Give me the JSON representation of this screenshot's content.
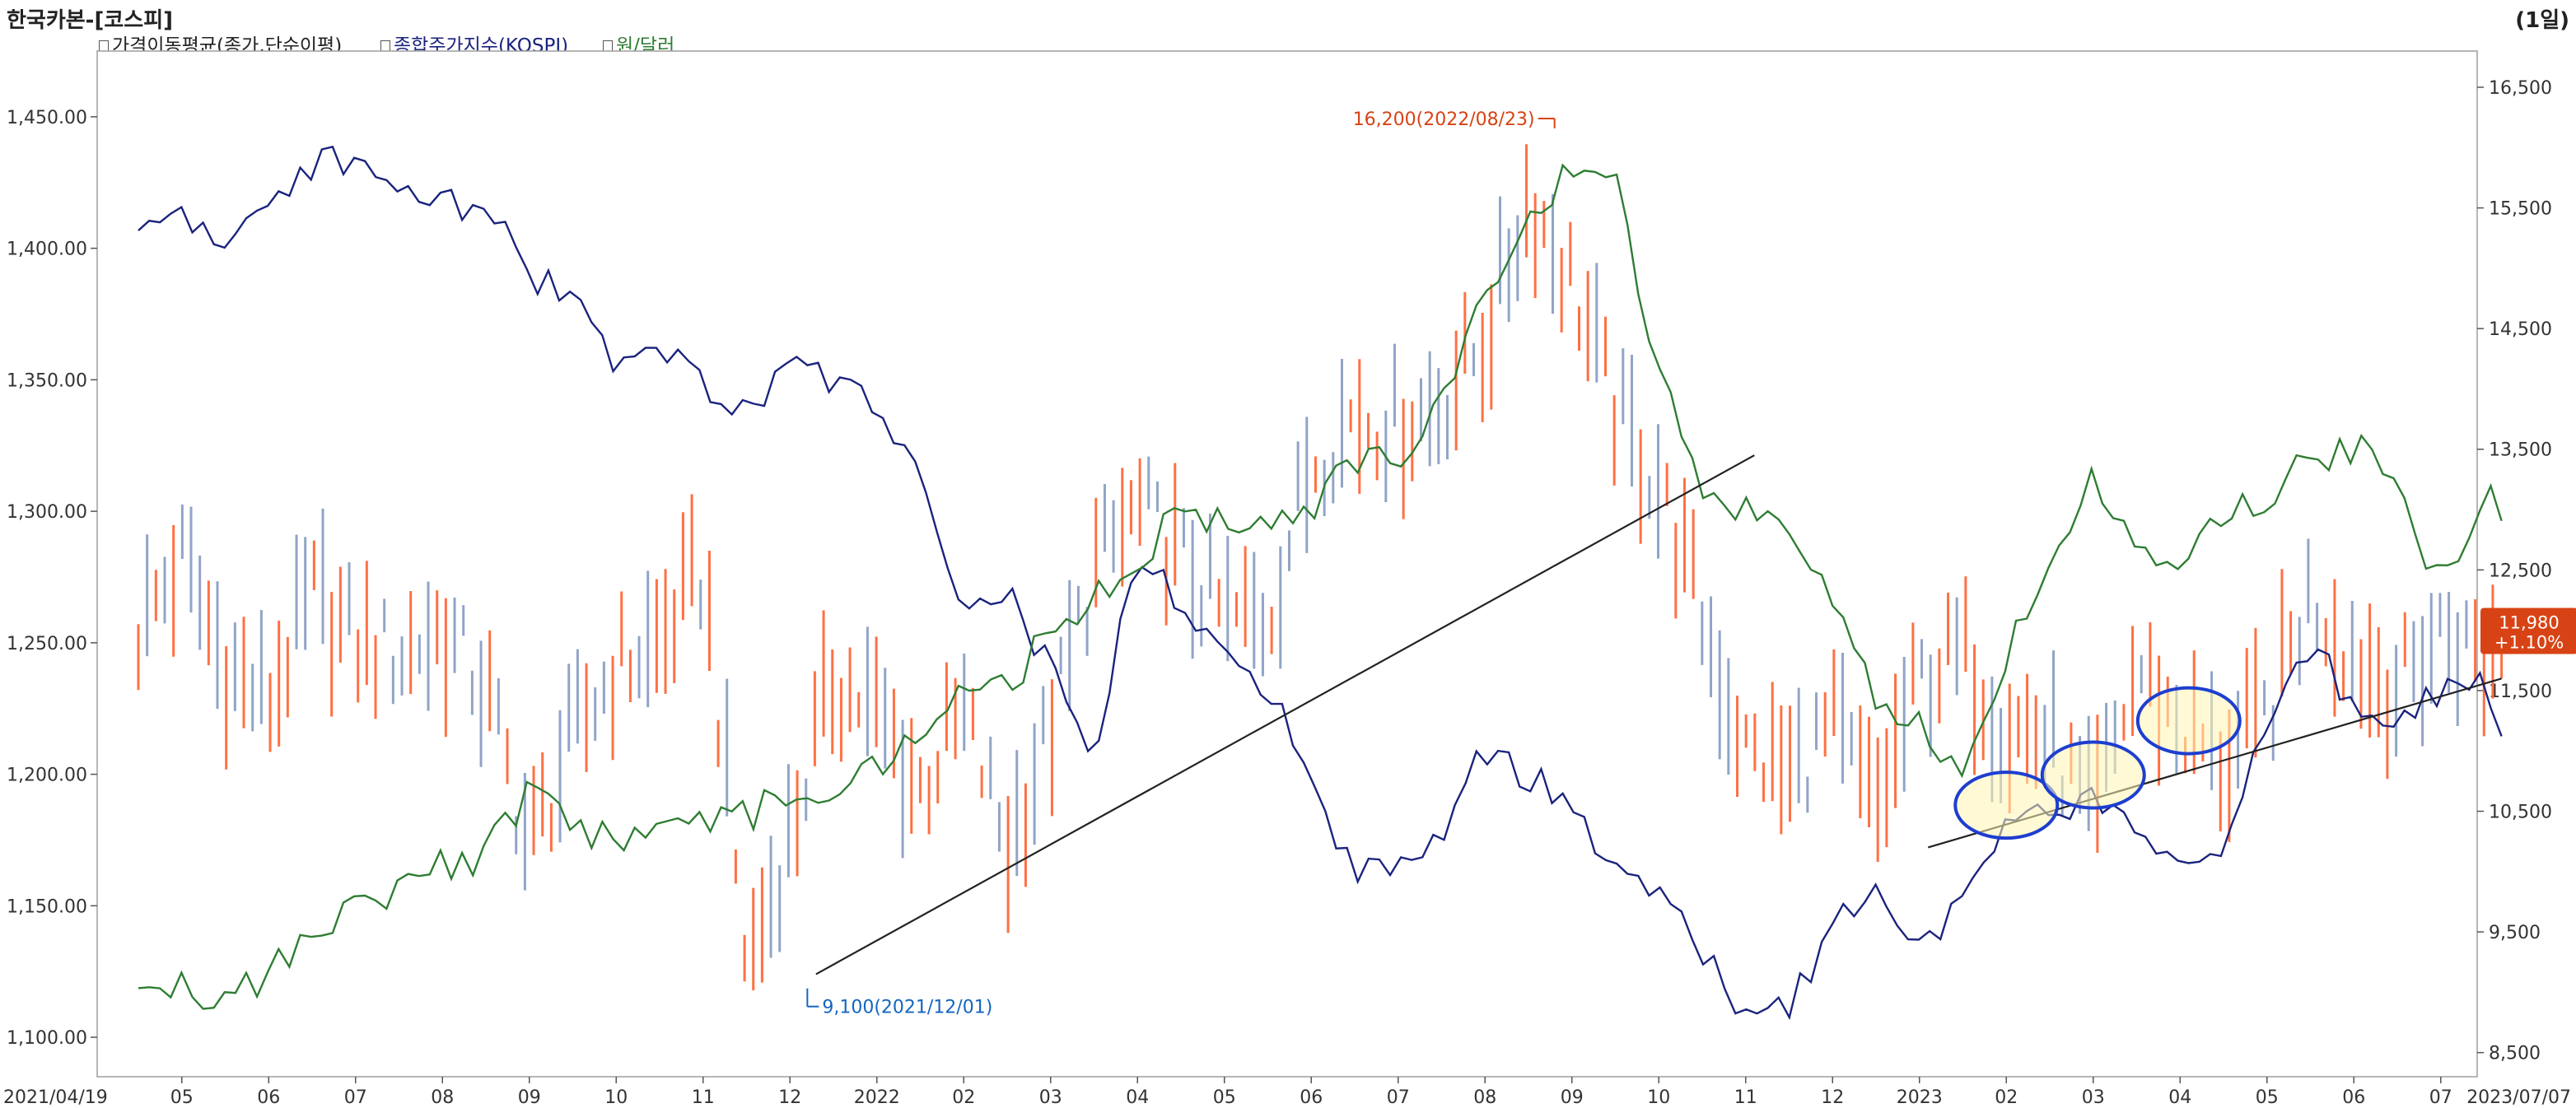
{
  "title": "한국카본-[코스피]",
  "period": "(1일)",
  "legend": [
    {
      "label": "가격이동평균(종가,단순이평)",
      "color": "#222222"
    },
    {
      "label": "종합주가지수(KOSPI)",
      "color": "#1a237e"
    },
    {
      "label": "원/달러",
      "color": "#2e7d32"
    }
  ],
  "chart_data": {
    "type": "line",
    "title": "한국카본-[코스피]",
    "x_labels": [
      "2021/04/19",
      "05",
      "06",
      "07",
      "08",
      "09",
      "10",
      "11",
      "12",
      "2022",
      "02",
      "03",
      "04",
      "05",
      "06",
      "07",
      "08",
      "09",
      "10",
      "11",
      "12",
      "2023",
      "02",
      "03",
      "04",
      "05",
      "06",
      "07",
      "2023/07/07"
    ],
    "left_axis": {
      "ticks": [
        "1,450.00",
        "1,400.00",
        "1,350.00",
        "1,300.00",
        "1,250.00",
        "1,200.00",
        "1,150.00",
        "1,100.00"
      ],
      "range": [
        1085,
        1475
      ]
    },
    "right_axis": {
      "ticks": [
        "16,500",
        "15,500",
        "14,500",
        "13,500",
        "12,500",
        "11,500",
        "10,500",
        "9,500",
        "8,500"
      ],
      "range": [
        8300,
        16800
      ]
    },
    "annotations": {
      "high": {
        "label": "16,200(2022/08/23)",
        "value": 16200,
        "date": "2022/08/23"
      },
      "low": {
        "label": "9,100(2021/12/01)",
        "value": 9100,
        "date": "2021/12/01"
      },
      "last": {
        "price": "11,980",
        "change": "+1.10%",
        "value": 11980
      }
    },
    "series": [
      {
        "name": "한국카본",
        "axis": "right",
        "kind": "candlestick",
        "months": [
          0,
          0.5,
          1,
          1.5,
          2,
          2.5,
          3,
          3.5,
          4,
          4.5,
          5,
          5.5,
          6,
          6.5,
          7,
          7.5,
          8,
          8.5,
          9,
          9.5,
          10,
          10.5,
          11,
          11.5,
          12,
          12.5,
          13,
          13.5,
          14,
          14.5,
          15,
          15.5,
          16,
          16.5,
          17,
          17.5,
          18,
          18.5,
          19,
          19.5,
          20,
          20.5,
          21,
          21.5,
          22,
          22.5,
          23,
          23.5,
          24,
          24.5,
          25,
          25.5,
          26,
          26.5,
          27,
          27.2
        ],
        "values": [
          12000,
          12600,
          11700,
          11400,
          12300,
          11900,
          11800,
          12000,
          11500,
          10200,
          11100,
          11700,
          11900,
          12500,
          9200,
          10300,
          11600,
          11300,
          10700,
          11300,
          10200,
          11200,
          12500,
          13000,
          12600,
          12100,
          12100,
          13400,
          13800,
          13700,
          13900,
          14400,
          15600,
          14900,
          13800,
          13200,
          12100,
          11000,
          10800,
          11200,
          10500,
          11600,
          11800,
          11200,
          11100,
          10400,
          11700,
          11200,
          10900,
          11300,
          12300,
          11800,
          11500,
          12000,
          11800,
          11980
        ]
      },
      {
        "name": "종합주가지수(KOSPI)",
        "axis": "left",
        "kind": "line",
        "months": [
          0,
          0.5,
          1,
          1.5,
          2,
          2.5,
          3,
          3.5,
          4,
          4.5,
          5,
          5.5,
          6,
          6.5,
          7,
          7.5,
          8,
          8.5,
          9,
          9.5,
          10,
          10.5,
          11,
          11.5,
          12,
          12.5,
          13,
          13.5,
          14,
          14.5,
          15,
          15.5,
          16,
          16.5,
          17,
          17.5,
          18,
          18.5,
          19,
          19.5,
          20,
          20.5,
          21,
          21.5,
          22,
          22.5,
          23,
          23.5,
          24,
          24.5,
          25,
          25.5,
          26,
          26.5,
          27,
          27.2
        ],
        "values": [
          1410,
          1415,
          1405,
          1420,
          1430,
          1435,
          1425,
          1420,
          1415,
          1390,
          1380,
          1355,
          1360,
          1350,
          1335,
          1360,
          1350,
          1340,
          1310,
          1260,
          1270,
          1240,
          1210,
          1280,
          1265,
          1245,
          1235,
          1195,
          1160,
          1165,
          1175,
          1210,
          1200,
          1185,
          1165,
          1155,
          1130,
          1110,
          1110,
          1140,
          1160,
          1130,
          1150,
          1185,
          1185,
          1190,
          1180,
          1170,
          1170,
          1220,
          1245,
          1230,
          1220,
          1230,
          1240,
          1215
        ]
      },
      {
        "name": "원/달러",
        "axis": "left",
        "kind": "line",
        "months": [
          0,
          0.5,
          1,
          1.5,
          2,
          2.5,
          3,
          3.5,
          4,
          4.5,
          5,
          5.5,
          6,
          6.5,
          7,
          7.5,
          8,
          8.5,
          9,
          9.5,
          10,
          10.5,
          11,
          11.5,
          12,
          12.5,
          13,
          13.5,
          14,
          14.5,
          15,
          15.5,
          16,
          16.5,
          17,
          17.5,
          18,
          18.5,
          19,
          19.5,
          20,
          20.5,
          21,
          21.5,
          22,
          22.5,
          23,
          23.5,
          24,
          24.5,
          25,
          25.5,
          26,
          26.5,
          27,
          27.2
        ],
        "values": [
          1125,
          1120,
          1115,
          1125,
          1140,
          1150,
          1155,
          1165,
          1170,
          1195,
          1180,
          1175,
          1175,
          1180,
          1185,
          1190,
          1185,
          1205,
          1210,
          1240,
          1230,
          1260,
          1265,
          1280,
          1300,
          1295,
          1300,
          1300,
          1320,
          1320,
          1340,
          1380,
          1410,
          1430,
          1425,
          1350,
          1310,
          1300,
          1290,
          1270,
          1230,
          1220,
          1200,
          1245,
          1275,
          1315,
          1285,
          1280,
          1300,
          1305,
          1320,
          1325,
          1310,
          1270,
          1305,
          1300
        ]
      },
      {
        "name": "trendline-main",
        "axis": "right",
        "kind": "trend",
        "months": [
          7.8,
          18.6
        ],
        "values": [
          9150,
          13450
        ]
      },
      {
        "name": "trendline-2023",
        "axis": "right",
        "kind": "trend",
        "months": [
          20.6,
          27.2
        ],
        "values": [
          10200,
          11600
        ]
      }
    ],
    "highlight_ellipses": [
      {
        "center_month": 21.5,
        "center_value": 10550
      },
      {
        "center_month": 22.5,
        "center_value": 10800
      },
      {
        "center_month": 23.6,
        "center_value": 11250
      }
    ]
  }
}
